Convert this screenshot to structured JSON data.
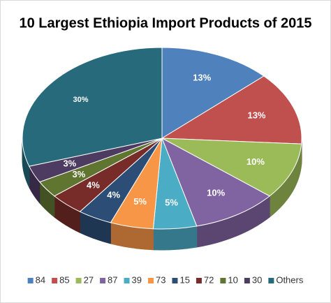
{
  "chart_data": {
    "type": "pie",
    "title": "10 Largest Ethiopia Import Products of 2015",
    "categories": [
      "84",
      "85",
      "27",
      "87",
      "39",
      "73",
      "15",
      "72",
      "10",
      "30",
      "Others"
    ],
    "values": [
      13,
      13,
      10,
      10,
      5,
      5,
      4,
      4,
      3,
      3,
      30
    ],
    "value_labels": [
      "13%",
      "13%",
      "10%",
      "10%",
      "5%",
      "5%",
      "4%",
      "4%",
      "3%",
      "3%",
      "30%"
    ],
    "colors": [
      "#4f81bd",
      "#c0504d",
      "#9bbb59",
      "#8064a2",
      "#4bacc6",
      "#f79646",
      "#2c4d75",
      "#772c2a",
      "#5f7530",
      "#4d3b62",
      "#276a7c"
    ],
    "legend": "bottom"
  }
}
